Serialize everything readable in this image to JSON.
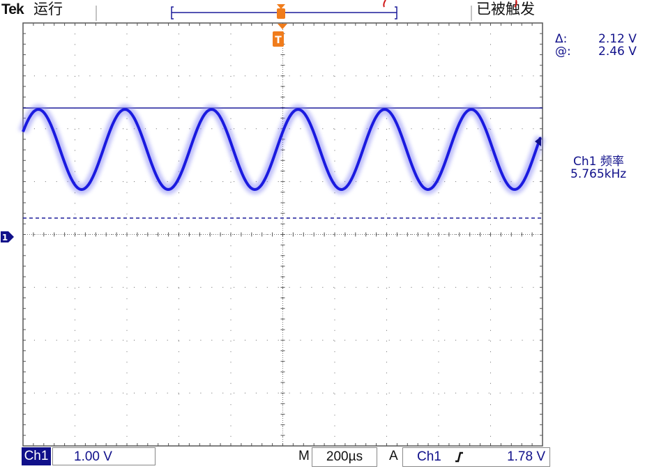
{
  "header": {
    "brand": "Tek",
    "run_state": "运行",
    "trigger_state": "已被触发",
    "trigger_marker": "T"
  },
  "measurements": {
    "delta_label": "Δ:",
    "delta_value": "2.12 V",
    "at_label": "@:",
    "at_value": "2.46 V",
    "freq_label": "Ch1 频率",
    "freq_value": "5.765kHz"
  },
  "footer": {
    "channel": "Ch1",
    "volts_per_div": "1.00 V",
    "time_prefix": "M",
    "time_per_div": "200µs",
    "trigger_prefix": "A",
    "trigger_source": "Ch1",
    "trigger_slope_icon": "rising-edge",
    "trigger_level": "1.78 V"
  },
  "channel_marker": "1",
  "waveform": {
    "shape": "sine",
    "cycles_visible": 6,
    "color": "#1a1ae0"
  },
  "colors": {
    "trace": "#1a1ae0",
    "cursor": "#1c1c9a",
    "trigger": "#f07c1c",
    "text": "#10108a",
    "channel_badge": "#10108a"
  }
}
